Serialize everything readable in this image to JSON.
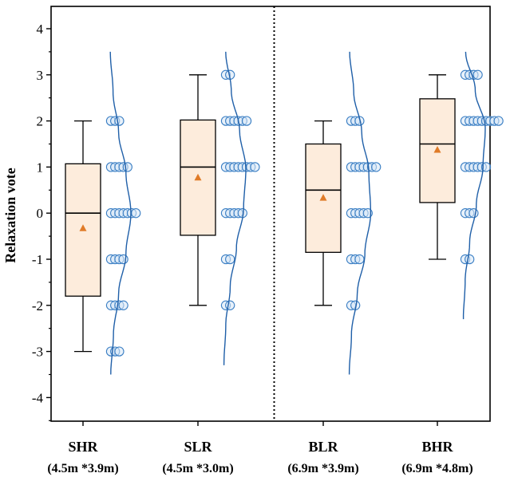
{
  "chart_data": {
    "type": "box",
    "title": "",
    "xlabel": "",
    "ylabel": "Relaxation vote",
    "ylim": [
      -4.5,
      4.5
    ],
    "yticks": [
      -4,
      -3,
      -2,
      -1,
      0,
      1,
      2,
      3,
      4
    ],
    "divider_after_category": 2,
    "colors": {
      "box_fill": "#fdecdc",
      "box_stroke": "#000000",
      "mean_marker": "#e07b28",
      "point_stroke": "#3b7fc4",
      "point_fill": "#d6e6f5",
      "density_curve": "#1f5fa8"
    },
    "categories": [
      {
        "name": "SHR",
        "sub": "(4.5m *3.9m)",
        "whisker_low": -3,
        "q1": -1.8,
        "median": 0,
        "q3": 1.07,
        "whisker_high": 2,
        "mean": -0.33,
        "points": [
          {
            "value": 2,
            "count": 3
          },
          {
            "value": 1,
            "count": 5
          },
          {
            "value": 0,
            "count": 7
          },
          {
            "value": -1,
            "count": 4
          },
          {
            "value": -2,
            "count": 4
          },
          {
            "value": -3,
            "count": 3
          }
        ],
        "density_range": [
          -3.5,
          3.5
        ],
        "density": [
          0.1,
          0.22,
          0.45,
          0.78,
          1.0,
          0.78,
          0.45,
          0.2,
          0.08
        ]
      },
      {
        "name": "SLR",
        "sub": "(4.5m *3.0m)",
        "whisker_low": -2,
        "q1": -0.48,
        "median": 1,
        "q3": 2.02,
        "whisker_high": 3,
        "mean": 0.77,
        "points": [
          {
            "value": 3,
            "count": 2
          },
          {
            "value": 2,
            "count": 6
          },
          {
            "value": 1,
            "count": 8
          },
          {
            "value": 0,
            "count": 5
          },
          {
            "value": -1,
            "count": 2
          },
          {
            "value": -2,
            "count": 2
          }
        ],
        "density_range": [
          -3.3,
          3.5
        ],
        "density": [
          0.02,
          0.1,
          0.3,
          0.58,
          0.9,
          1.0,
          0.72,
          0.35,
          0.1
        ]
      },
      {
        "name": "BLR",
        "sub": "(6.9m *3.9m)",
        "whisker_low": -2,
        "q1": -0.85,
        "median": 0.5,
        "q3": 1.5,
        "whisker_high": 2,
        "mean": 0.33,
        "points": [
          {
            "value": 2,
            "count": 3
          },
          {
            "value": 1,
            "count": 7
          },
          {
            "value": 0,
            "count": 5
          },
          {
            "value": -1,
            "count": 3
          },
          {
            "value": -2,
            "count": 2
          }
        ],
        "density_range": [
          -3.5,
          3.5
        ],
        "density": [
          0.02,
          0.12,
          0.38,
          0.72,
          0.98,
          0.9,
          0.58,
          0.22,
          0.04
        ]
      },
      {
        "name": "BHR",
        "sub": "(6.9m *4.8m)",
        "whisker_low": -1,
        "q1": 0.23,
        "median": 1.5,
        "q3": 2.48,
        "whisker_high": 3,
        "mean": 1.37,
        "points": [
          {
            "value": 3,
            "count": 4
          },
          {
            "value": 2,
            "count": 9
          },
          {
            "value": 1,
            "count": 6
          },
          {
            "value": 0,
            "count": 3
          },
          {
            "value": -1,
            "count": 2
          }
        ],
        "density_range": [
          -2.3,
          3.5
        ],
        "density": [
          0.02,
          0.1,
          0.3,
          0.6,
          0.9,
          1.0,
          0.55,
          0.12
        ]
      }
    ]
  }
}
